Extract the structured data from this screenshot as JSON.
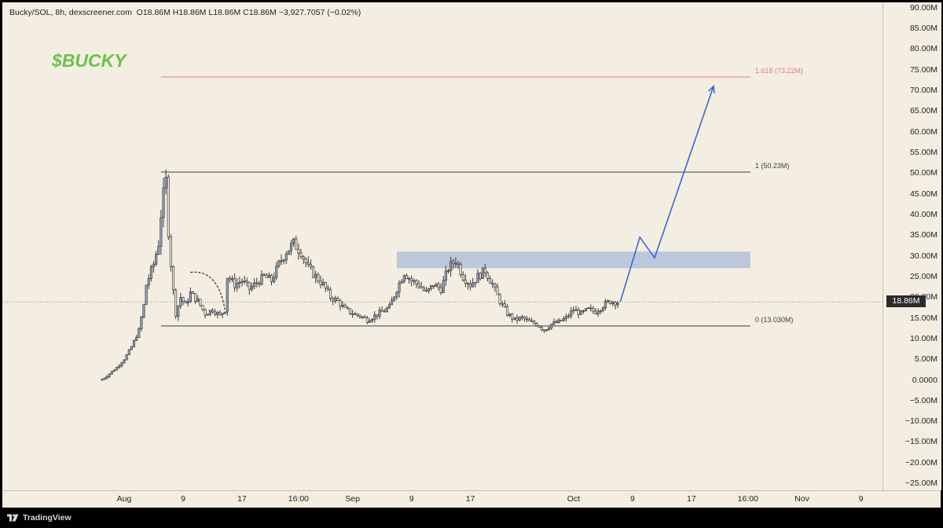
{
  "header": {
    "symbol": "Bucky/SOL, 8h, dexscreener.com",
    "open_label": "O",
    "open_value": "18.86M",
    "high_label": "H",
    "high_value": "18.86M",
    "low_label": "L",
    "low_value": "18.86M",
    "close_label": "C",
    "close_value": "18.86M",
    "change": "−3,927.7057 (−0.02%)"
  },
  "ticker_title": "$BUCKY",
  "last_price_label": "18.86M",
  "footer": {
    "brand": "TradingView",
    "icon": "tradingview-logo-icon"
  },
  "colors": {
    "background": "#F3EEE1",
    "candle_up": "#8FA6C8",
    "candle_outline": "#3a3a3a",
    "fib_line": "#3d3d3d",
    "fib_extension": "#E57C7C",
    "projection": "#3A66D6",
    "zone": "#9FB2D9",
    "title": "#6EC04F"
  },
  "chart_data": {
    "type": "candlestick",
    "title": "",
    "xlabel": "",
    "ylabel": "",
    "ylim": [
      -27500000,
      91000000
    ],
    "y_ticks": [
      "90.00M",
      "85.00M",
      "80.00M",
      "75.00M",
      "70.00M",
      "65.00M",
      "60.00M",
      "55.00M",
      "50.00M",
      "45.00M",
      "40.00M",
      "35.00M",
      "30.00M",
      "25.00M",
      "20.00M",
      "15.00M",
      "10.00M",
      "5.00M",
      "0.0000",
      "−5.00M",
      "−10.00M",
      "−15.00M",
      "−20.00M",
      "−25.00M"
    ],
    "x_ticks": [
      "Aug",
      "9",
      "17",
      "16:00",
      "Sep",
      "9",
      "17",
      "Oct",
      "9",
      "17",
      "16:00",
      "Nov",
      "9"
    ],
    "x_tick_dates": [
      "2024-08-01",
      "2024-08-09",
      "2024-08-17",
      "2024-08-24 16:00",
      "2024-09-01",
      "2024-09-09",
      "2024-09-17",
      "2024-10-01",
      "2024-10-09",
      "2024-10-17",
      "2024-10-24 16:00",
      "2024-11-01",
      "2024-11-09"
    ],
    "last_price": 18860000,
    "price_path": [
      [
        "2024-07-29",
        0.1
      ],
      [
        "2024-07-30",
        1.5
      ],
      [
        "2024-07-31",
        3.0
      ],
      [
        "2024-08-01",
        5.0
      ],
      [
        "2024-08-02",
        8.0
      ],
      [
        "2024-08-03",
        12.0
      ],
      [
        "2024-08-03 16:00",
        18.0
      ],
      [
        "2024-08-04",
        23.0
      ],
      [
        "2024-08-05",
        28.0
      ],
      [
        "2024-08-05 16:00",
        33.0
      ],
      [
        "2024-08-06",
        40.0
      ],
      [
        "2024-08-06 12:00",
        47.0
      ],
      [
        "2024-08-06 20:00",
        49.0
      ],
      [
        "2024-08-07",
        36.0
      ],
      [
        "2024-08-07 12:00",
        24.0
      ],
      [
        "2024-08-08",
        16.0
      ],
      [
        "2024-08-08 16:00",
        20.0
      ],
      [
        "2024-08-09 08:00",
        18.0
      ],
      [
        "2024-08-10",
        21.0
      ],
      [
        "2024-08-11",
        19.0
      ],
      [
        "2024-08-12",
        16.0
      ],
      [
        "2024-08-13",
        17.0
      ],
      [
        "2024-08-14",
        15.5
      ],
      [
        "2024-08-14 16:00",
        17.0
      ],
      [
        "2024-08-15",
        25.0
      ],
      [
        "2024-08-16",
        23.0
      ],
      [
        "2024-08-17",
        24.0
      ],
      [
        "2024-08-18",
        22.0
      ],
      [
        "2024-08-19",
        23.5
      ],
      [
        "2024-08-20",
        25.0
      ],
      [
        "2024-08-21",
        24.0
      ],
      [
        "2024-08-22",
        28.0
      ],
      [
        "2024-08-23",
        31.0
      ],
      [
        "2024-08-24",
        33.0
      ],
      [
        "2024-08-25",
        31.0
      ],
      [
        "2024-08-26",
        27.0
      ],
      [
        "2024-08-27",
        25.0
      ],
      [
        "2024-08-28",
        23.0
      ],
      [
        "2024-08-29",
        20.0
      ],
      [
        "2024-08-30",
        19.0
      ],
      [
        "2024-08-31",
        17.0
      ],
      [
        "2024-09-01",
        16.0
      ],
      [
        "2024-09-02",
        15.5
      ],
      [
        "2024-09-03",
        14.5
      ],
      [
        "2024-09-04",
        15.5
      ],
      [
        "2024-09-05",
        16.5
      ],
      [
        "2024-09-06",
        17.5
      ],
      [
        "2024-09-07",
        22.0
      ],
      [
        "2024-09-08",
        26.0
      ],
      [
        "2024-09-09",
        24.0
      ],
      [
        "2024-09-10",
        23.0
      ],
      [
        "2024-09-11",
        21.0
      ],
      [
        "2024-09-12",
        23.0
      ],
      [
        "2024-09-13",
        22.0
      ],
      [
        "2024-09-14",
        27.0
      ],
      [
        "2024-09-15",
        29.0
      ],
      [
        "2024-09-16",
        25.0
      ],
      [
        "2024-09-17",
        23.0
      ],
      [
        "2024-09-18",
        25.0
      ],
      [
        "2024-09-19",
        26.5
      ],
      [
        "2024-09-20",
        23.0
      ],
      [
        "2024-09-21",
        19.0
      ],
      [
        "2024-09-22",
        16.0
      ],
      [
        "2024-09-23",
        14.5
      ],
      [
        "2024-09-24",
        15.0
      ],
      [
        "2024-09-25",
        14.0
      ],
      [
        "2024-09-26",
        13.5
      ],
      [
        "2024-09-27",
        12.0
      ],
      [
        "2024-09-28",
        13.5
      ],
      [
        "2024-09-29",
        14.0
      ],
      [
        "2024-09-30",
        15.0
      ],
      [
        "2024-10-01",
        17.0
      ],
      [
        "2024-10-02",
        16.0
      ],
      [
        "2024-10-03",
        17.0
      ],
      [
        "2024-10-04",
        16.5
      ],
      [
        "2024-10-05",
        18.0
      ],
      [
        "2024-10-06",
        19.0
      ],
      [
        "2024-10-07",
        18.86
      ]
    ],
    "annotations": [
      {
        "type": "fib_level",
        "label": "1.618 (73.22M)",
        "value": 73220000,
        "start": "2024-08-06",
        "end": "2024-10-25",
        "style": "extension"
      },
      {
        "type": "fib_level",
        "label": "1 (50.23M)",
        "value": 50230000,
        "start": "2024-08-06",
        "end": "2024-10-25",
        "style": "level"
      },
      {
        "type": "fib_level",
        "label": "0 (13.030M)",
        "value": 13030000,
        "start": "2024-08-06",
        "end": "2024-10-25",
        "style": "level"
      },
      {
        "type": "zone",
        "low": 27000000,
        "high": 31000000,
        "start": "2024-09-07",
        "end": "2024-10-25"
      },
      {
        "type": "projection",
        "points": [
          [
            "2024-10-07 08:00",
            18.86
          ],
          [
            "2024-10-10",
            34.5
          ],
          [
            "2024-10-12",
            29.5
          ],
          [
            "2024-10-20",
            71.0
          ]
        ]
      },
      {
        "type": "arc",
        "points": [
          [
            "2024-08-10",
            26.0
          ],
          [
            "2024-08-12 16:00",
            24.5
          ],
          [
            "2024-08-14 16:00",
            17.0
          ]
        ]
      }
    ]
  }
}
